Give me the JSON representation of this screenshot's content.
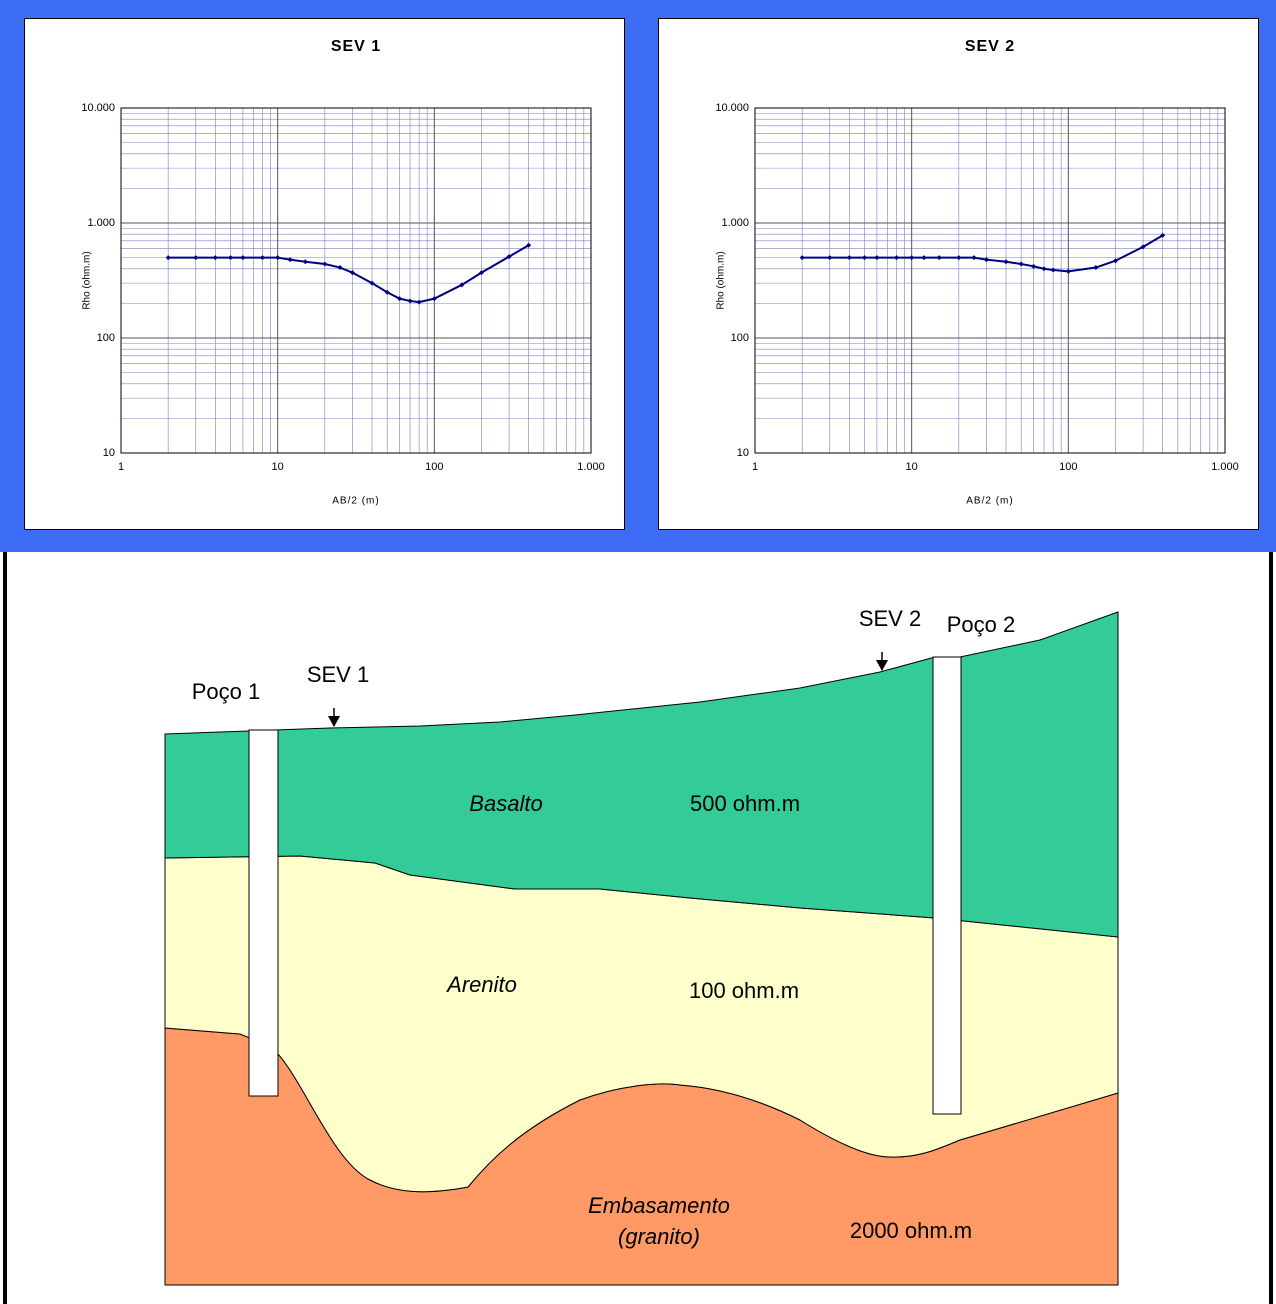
{
  "chart_data": [
    {
      "type": "line",
      "title": "SEV 1",
      "x_label": "AB/2 (m)",
      "y_label": "Rho (ohm.m)",
      "x": [
        2,
        3,
        4,
        5,
        6,
        8,
        10,
        12,
        15,
        20,
        25,
        30,
        40,
        50,
        60,
        70,
        80,
        100,
        150,
        200,
        300,
        400
      ],
      "series": [
        {
          "name": "SEV 1",
          "color": "#000080",
          "values": [
            500,
            500,
            500,
            500,
            500,
            500,
            500,
            480,
            460,
            440,
            410,
            370,
            300,
            250,
            220,
            210,
            205,
            220,
            290,
            370,
            510,
            640
          ]
        }
      ],
      "xlim": [
        1,
        1000
      ],
      "ylim": [
        10,
        10000
      ],
      "xticks": [
        1,
        10,
        100,
        {
          "value": 1000,
          "label": "1.000"
        }
      ],
      "yticks": [
        10,
        100,
        {
          "value": 1000,
          "label": "1.000"
        },
        {
          "value": 10000,
          "label": "10.000"
        }
      ],
      "log_x": true,
      "log_y": true,
      "grid": true,
      "minor_grid": true
    },
    {
      "type": "line",
      "title": "SEV 2",
      "x_label": "AB/2 (m)",
      "y_label": "Rho (ohm.m)",
      "x": [
        2,
        3,
        4,
        5,
        6,
        8,
        10,
        12,
        15,
        20,
        25,
        30,
        40,
        50,
        60,
        70,
        80,
        100,
        150,
        200,
        300,
        400
      ],
      "series": [
        {
          "name": "SEV 2",
          "color": "#000080",
          "values": [
            500,
            500,
            500,
            500,
            500,
            500,
            500,
            500,
            500,
            500,
            500,
            480,
            460,
            440,
            420,
            400,
            390,
            380,
            410,
            470,
            620,
            780
          ]
        }
      ],
      "xlim": [
        1,
        1000
      ],
      "ylim": [
        10,
        10000
      ],
      "xticks": [
        1,
        10,
        100,
        {
          "value": 1000,
          "label": "1.000"
        }
      ],
      "yticks": [
        10,
        100,
        {
          "value": 1000,
          "label": "1.000"
        },
        {
          "value": 10000,
          "label": "10.000"
        }
      ],
      "log_x": true,
      "log_y": true,
      "grid": true,
      "minor_grid": true
    }
  ],
  "diagram": {
    "labels": {
      "well_1": "Poço 1",
      "sev_1": "SEV 1",
      "sev_2": "SEV 2",
      "well_2": "Poço 2",
      "basalt": "Basalto",
      "basalt_rho": "500 ohm.m",
      "sandstone": "Arenito",
      "sandstone_rho": "100 ohm.m",
      "basement": "Embasamento",
      "basement_note": "(granito)",
      "basement_rho": "2000 ohm.m"
    }
  }
}
